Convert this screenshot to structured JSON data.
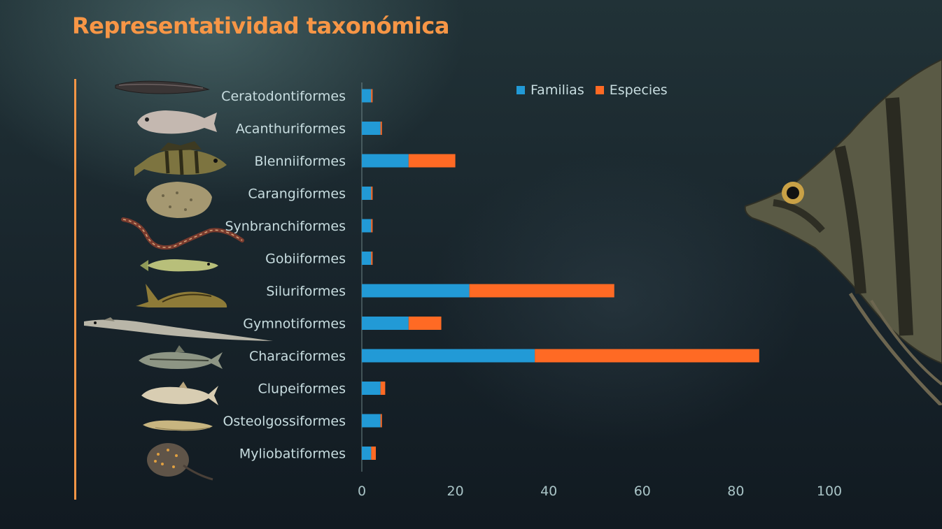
{
  "slide": {
    "title": "Representatividad taxonómica"
  },
  "icons": {
    "fish_thumbnails": "fish-photo-icon",
    "decoration": "angelfish-photo"
  },
  "colors": {
    "title": "#f79646",
    "familias": "#229ad6",
    "especies": "#ff6a24",
    "axis_text": "#a9c4c6",
    "category_text": "#c8dde0"
  },
  "chart_data": {
    "type": "bar",
    "orientation": "horizontal",
    "stacked": true,
    "categories": [
      "Ceratodontiformes",
      "Acanthuriformes",
      "Blenniiformes",
      "Carangiformes",
      "Synbranchiformes",
      "Gobiiformes",
      "Siluriformes",
      "Gymnotiformes",
      "Characiformes",
      "Clupeiformes",
      "Osteolgossiformes",
      "Myliobatiformes"
    ],
    "series": [
      {
        "name": "Familias",
        "values": [
          2,
          4,
          10,
          2,
          2,
          2,
          23,
          10,
          37,
          4,
          4,
          2
        ]
      },
      {
        "name": "Especies",
        "values": [
          0.3,
          0.3,
          10,
          0.3,
          0.3,
          0.3,
          31,
          7,
          48,
          1,
          0.3,
          1
        ]
      }
    ],
    "xlim": [
      0,
      100
    ],
    "xticks": [
      "0",
      "20",
      "40",
      "60",
      "80",
      "100"
    ],
    "legend": "top"
  }
}
